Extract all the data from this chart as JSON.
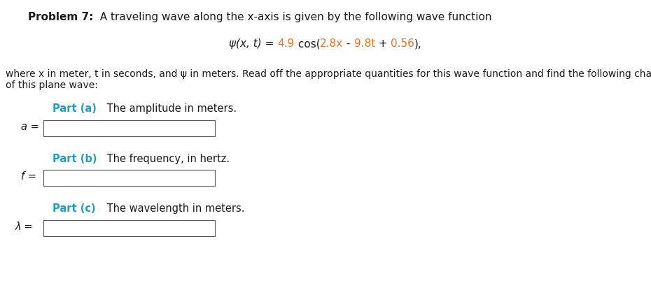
{
  "title_bold": "Problem 7:",
  "title_normal": "  A traveling wave along the x-axis is given by the following wave function",
  "eq_psi": "ψ(x, t) = ",
  "eq_amp": "4.9",
  "eq_cos": " cos(",
  "eq_kx": "2.8x",
  "eq_sep1": " - ",
  "eq_omegat": "9.8t",
  "eq_sep2": " + ",
  "eq_phi": "0.56",
  "eq_end": "),",
  "description_line1": "where x in meter, t in seconds, and ψ in meters. Read off the appropriate quantities for this wave function and find the following characteristics",
  "description_line2": "of this plane wave:",
  "part_a_label": "Part (a)",
  "part_a_text": " The amplitude in meters.",
  "part_b_label": "Part (b)",
  "part_b_text": " The frequency, in hertz.",
  "part_c_label": "Part (c)",
  "part_c_text": " The wavelength in meters.",
  "var_a": "a =",
  "var_f": "f =",
  "var_lambda": "λ =",
  "color_black": "#1a1a1a",
  "color_teal": "#1E9DC0",
  "color_orange": "#E8732A",
  "bg_color": "#ffffff",
  "box_color": "#555555",
  "title_fontsize": 11,
  "eq_fontsize": 11,
  "desc_fontsize": 10,
  "part_fontsize": 10.5,
  "var_fontsize": 10.5
}
